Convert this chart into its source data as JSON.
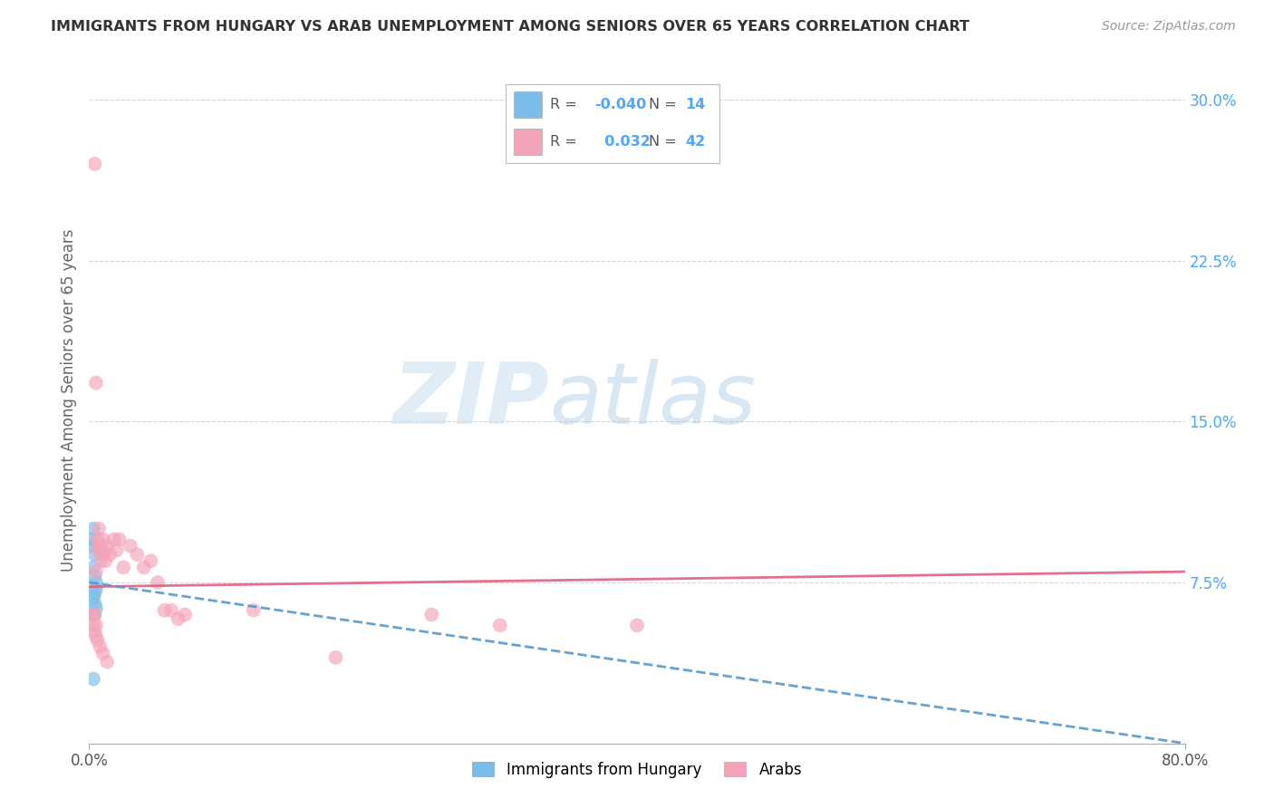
{
  "title": "IMMIGRANTS FROM HUNGARY VS ARAB UNEMPLOYMENT AMONG SENIORS OVER 65 YEARS CORRELATION CHART",
  "source": "Source: ZipAtlas.com",
  "ylabel": "Unemployment Among Seniors over 65 years",
  "xlim": [
    0.0,
    0.8
  ],
  "ylim": [
    0.0,
    0.32
  ],
  "xtick_vals": [
    0.0,
    0.8
  ],
  "xticklabels": [
    "0.0%",
    "80.0%"
  ],
  "ytick_vals_right": [
    0.075,
    0.15,
    0.225,
    0.3
  ],
  "ytick_labels_right": [
    "7.5%",
    "15.0%",
    "22.5%",
    "30.0%"
  ],
  "background_color": "#ffffff",
  "grid_color": "#cccccc",
  "watermark_zip": "ZIP",
  "watermark_atlas": "atlas",
  "legend_bottom": [
    "Immigrants from Hungary",
    "Arabs"
  ],
  "hungary_color": "#7bbde8",
  "arab_color": "#f4a4b8",
  "hungary_line_color": "#5599cc",
  "arab_line_color": "#e06080",
  "hungary_r": "-0.040",
  "hungary_n": "14",
  "arab_r": "0.032",
  "arab_n": "42",
  "hungary_x": [
    0.002,
    0.003,
    0.003,
    0.004,
    0.003,
    0.004,
    0.005,
    0.005,
    0.004,
    0.003,
    0.004,
    0.005,
    0.004,
    0.003
  ],
  "hungary_y": [
    0.095,
    0.1,
    0.092,
    0.088,
    0.082,
    0.078,
    0.075,
    0.072,
    0.07,
    0.068,
    0.065,
    0.063,
    0.06,
    0.03
  ],
  "arab_x": [
    0.004,
    0.005,
    0.005,
    0.006,
    0.006,
    0.007,
    0.008,
    0.009,
    0.01,
    0.01,
    0.011,
    0.012,
    0.013,
    0.015,
    0.018,
    0.02,
    0.022,
    0.025,
    0.03,
    0.035,
    0.04,
    0.045,
    0.05,
    0.055,
    0.06,
    0.065,
    0.07,
    0.12,
    0.18,
    0.25,
    0.3,
    0.4,
    0.003,
    0.003,
    0.004,
    0.004,
    0.005,
    0.005,
    0.006,
    0.008,
    0.01,
    0.013
  ],
  "arab_y": [
    0.27,
    0.168,
    0.08,
    0.095,
    0.09,
    0.1,
    0.092,
    0.085,
    0.095,
    0.09,
    0.088,
    0.085,
    0.092,
    0.088,
    0.095,
    0.09,
    0.095,
    0.082,
    0.092,
    0.088,
    0.082,
    0.085,
    0.075,
    0.062,
    0.062,
    0.058,
    0.06,
    0.062,
    0.04,
    0.06,
    0.055,
    0.055,
    0.06,
    0.055,
    0.052,
    0.06,
    0.055,
    0.05,
    0.048,
    0.045,
    0.042,
    0.038
  ],
  "arab_trend_x0": 0.0,
  "arab_trend_y0": 0.073,
  "arab_trend_x1": 0.8,
  "arab_trend_y1": 0.08,
  "hungary_trend_x0": 0.0,
  "hungary_trend_y0": 0.075,
  "hungary_trend_x1": 0.8,
  "hungary_trend_y1": 0.0
}
